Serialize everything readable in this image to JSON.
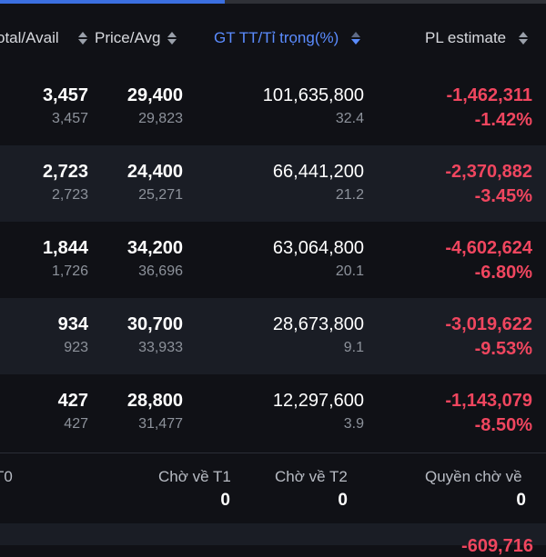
{
  "header": {
    "col_total_avail": "otal/Avail",
    "col_price_avg": "Price/Avg",
    "col_value_weight": "GT TT/Tỉ trọng(%)",
    "col_pl_estimate": "PL estimate"
  },
  "rows": [
    {
      "total": "3,457",
      "avail": "3,457",
      "price": "29,400",
      "avg": "29,823",
      "value": "101,635,800",
      "weight": "32.4",
      "pl": "-1,462,311",
      "pl_pct": "-1.42%"
    },
    {
      "total": "2,723",
      "avail": "2,723",
      "price": "24,400",
      "avg": "25,271",
      "value": "66,441,200",
      "weight": "21.2",
      "pl": "-2,370,882",
      "pl_pct": "-3.45%"
    },
    {
      "total": "1,844",
      "avail": "1,726",
      "price": "34,200",
      "avg": "36,696",
      "value": "63,064,800",
      "weight": "20.1",
      "pl": "-4,602,624",
      "pl_pct": "-6.80%"
    },
    {
      "total": "934",
      "avail": "923",
      "price": "30,700",
      "avg": "33,933",
      "value": "28,673,800",
      "weight": "9.1",
      "pl": "-3,019,622",
      "pl_pct": "-9.53%"
    },
    {
      "total": "427",
      "avail": "427",
      "price": "28,800",
      "avg": "31,477",
      "value": "12,297,600",
      "weight": "3.9",
      "pl": "-1,143,079",
      "pl_pct": "-8.50%"
    }
  ],
  "summary": {
    "t0_label": "T0",
    "t1_label": "Chờ về T1",
    "t1_value": "0",
    "t2_label": "Chờ về T2",
    "t2_value": "0",
    "rights_label": "Quyền chờ về",
    "rights_value": "0"
  },
  "footer": {
    "partial_total": "-609,716"
  },
  "colors": {
    "background": "#101116",
    "row_alt": "#1a1d25",
    "negative": "#f0465f",
    "active_sort": "#5b8cff"
  }
}
